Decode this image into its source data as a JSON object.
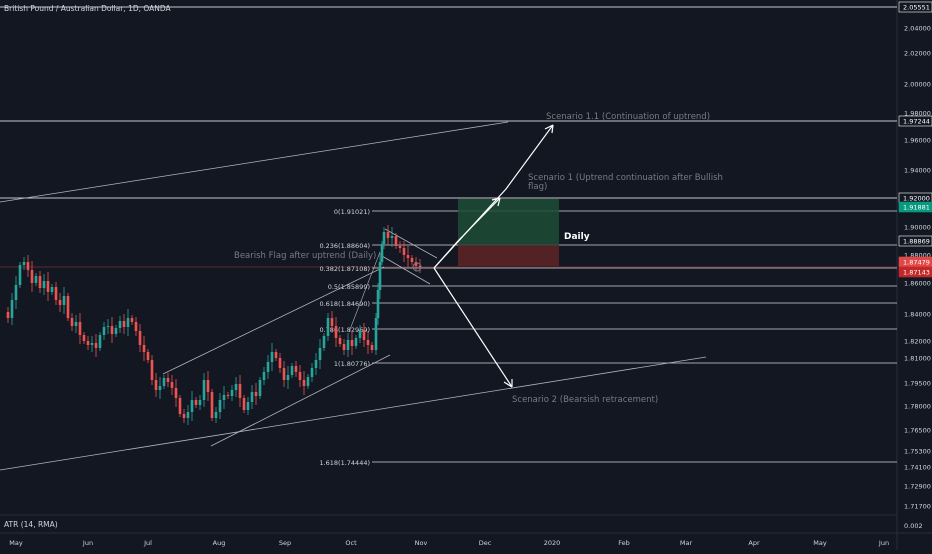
{
  "header": {
    "symbol_title": "British Pound / Australian Dollar, 1D, OANDA"
  },
  "indicator": {
    "label": "ATR (14, RMA)"
  },
  "price_axis": {
    "ticks": [
      "2.04000",
      "2.02000",
      "2.00000",
      "1.98000",
      "1.96000",
      "1.94000",
      "1.90000",
      "1.88000",
      "1.86000",
      "1.84000",
      "1.82000",
      "1.81000",
      "1.79500",
      "1.78000",
      "1.76500",
      "1.75300",
      "1.74100",
      "1.72900",
      "1.71700"
    ],
    "badges": [
      {
        "text": "2.05551",
        "color": "#ffffff",
        "bg": "#131722",
        "border": "#ffffff"
      },
      {
        "text": "1.97244",
        "color": "#ffffff",
        "bg": "#131722",
        "border": "#ffffff"
      },
      {
        "text": "1.92000",
        "color": "#ffffff",
        "bg": "#131722",
        "border": "#ffffff"
      },
      {
        "text": "1.91881",
        "color": "#ffffff",
        "bg": "#089981",
        "border": "#089981"
      },
      {
        "text": "1.88869",
        "color": "#ffffff",
        "bg": "#131722",
        "border": "#ffffff"
      },
      {
        "text": "1.87479",
        "color": "#ffffff",
        "bg": "#e14949",
        "border": "#e14949"
      },
      {
        "text": "1.87143",
        "color": "#ffffff",
        "bg": "#c22828",
        "border": "#c22828"
      }
    ],
    "atr_tick": "0.002"
  },
  "time_axis": {
    "labels": [
      "May",
      "Jun",
      "Jul",
      "Aug",
      "Sep",
      "Oct",
      "Nov",
      "Dec",
      "2020",
      "Feb",
      "Mar",
      "Apr",
      "May",
      "Jun"
    ]
  },
  "fib_levels": [
    {
      "label": "0(1.91021)"
    },
    {
      "label": "0.236(1.88604)"
    },
    {
      "label": "0.382(1.87108)"
    },
    {
      "label": "0.5(1.85899)"
    },
    {
      "label": "0.618(1.84690)"
    },
    {
      "label": "0.786(1.82969)"
    },
    {
      "label": "1(1.80776)"
    },
    {
      "label": "1.618(1.74444)"
    }
  ],
  "annotations": {
    "scenario_11": "Scenario 1.1 (Continuation of uptrend)",
    "scenario_1_line1": "Scenario 1 (Uptrend continuation after Bullish",
    "scenario_1_line2": "flag)",
    "scenario_2": "Scenario 2 (Bearsish retracement)",
    "bearish_flag": "Bearish Flag after uptrend (Daily)",
    "daily": "Daily"
  },
  "colors": {
    "background": "#131722",
    "bull": "#26a69a",
    "bear": "#ef5350",
    "line": "#b2b5be",
    "white": "#ffffff",
    "annotation_text": "#787b86"
  }
}
